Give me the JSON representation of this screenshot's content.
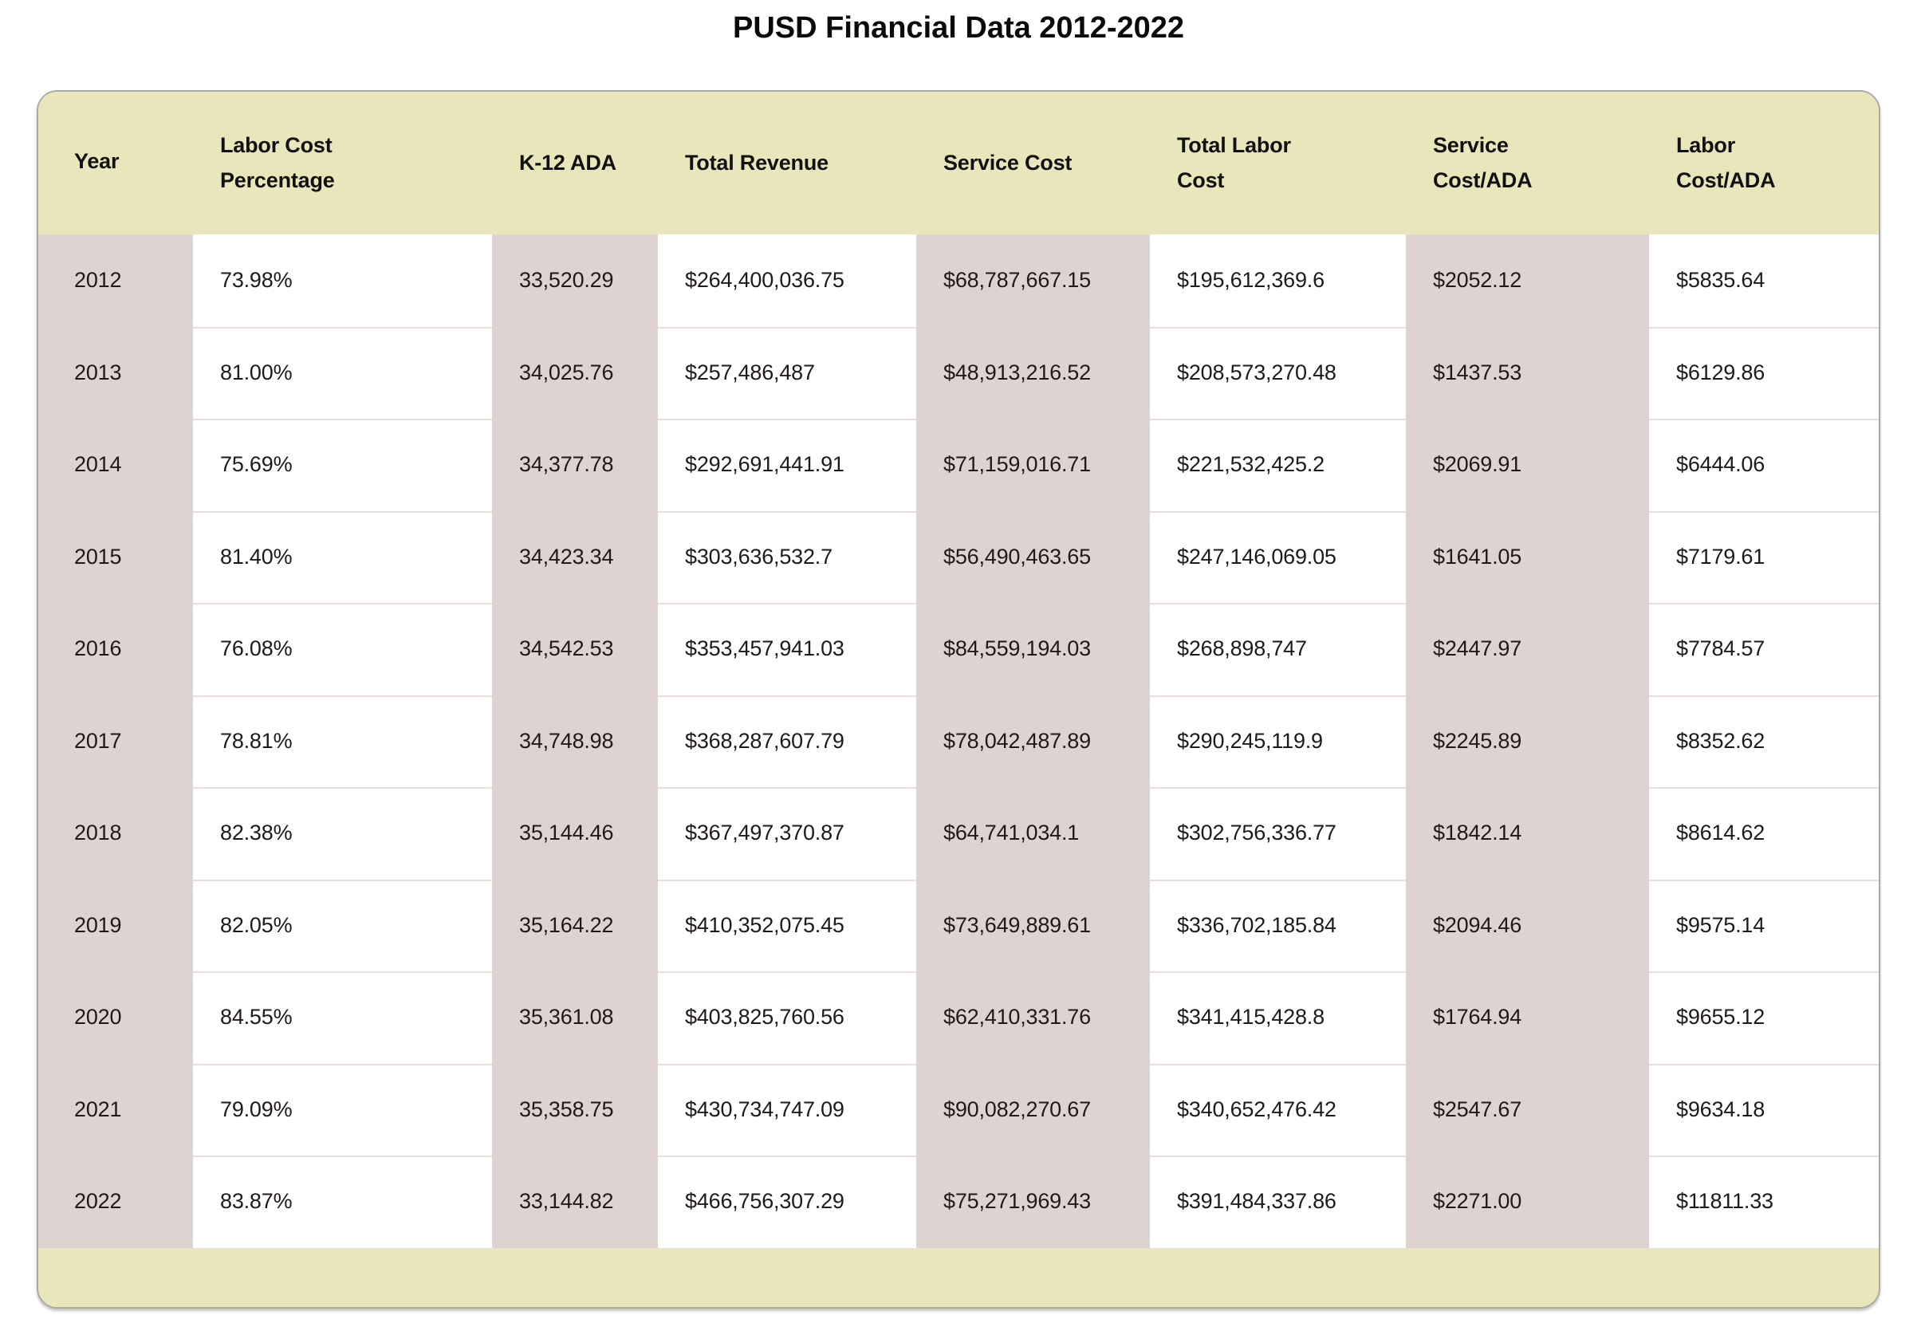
{
  "title": "PUSD Financial Data 2012-2022",
  "style": {
    "header_footer_band_color": "#e9e6bc",
    "stripe_column_color": "#ded3d1",
    "row_divider_color": "#eadedd",
    "card_border_color": "#aba9a2",
    "text_color": "#1f1a17"
  },
  "chart_data": {
    "type": "table",
    "title": "PUSD Financial Data 2012-2022",
    "columns": [
      "Year",
      "Labor Cost Percentage",
      "K-12 ADA",
      "Total Revenue",
      "Service Cost",
      "Total Labor Cost",
      "Service Cost/ADA",
      "Labor Cost/ADA"
    ],
    "column_display": [
      "Year",
      "Labor Cost\nPercentage",
      "K-12 ADA",
      "Total Revenue",
      "Service Cost",
      "Total Labor\nCost",
      "Service\nCost/ADA",
      "Labor\nCost/ADA"
    ],
    "rows": [
      [
        "2012",
        "73.98%",
        "33,520.29",
        "$264,400,036.75",
        "$68,787,667.15",
        "$195,612,369.6",
        "$2052.12",
        "$5835.64"
      ],
      [
        "2013",
        "81.00%",
        "34,025.76",
        "$257,486,487",
        "$48,913,216.52",
        "$208,573,270.48",
        "$1437.53",
        "$6129.86"
      ],
      [
        "2014",
        "75.69%",
        "34,377.78",
        "$292,691,441.91",
        "$71,159,016.71",
        "$221,532,425.2",
        "$2069.91",
        "$6444.06"
      ],
      [
        "2015",
        "81.40%",
        "34,423.34",
        "$303,636,532.7",
        "$56,490,463.65",
        "$247,146,069.05",
        "$1641.05",
        "$7179.61"
      ],
      [
        "2016",
        "76.08%",
        "34,542.53",
        "$353,457,941.03",
        "$84,559,194.03",
        "$268,898,747",
        "$2447.97",
        "$7784.57"
      ],
      [
        "2017",
        "78.81%",
        "34,748.98",
        "$368,287,607.79",
        "$78,042,487.89",
        "$290,245,119.9",
        "$2245.89",
        "$8352.62"
      ],
      [
        "2018",
        "82.38%",
        "35,144.46",
        "$367,497,370.87",
        "$64,741,034.1",
        "$302,756,336.77",
        "$1842.14",
        "$8614.62"
      ],
      [
        "2019",
        "82.05%",
        "35,164.22",
        "$410,352,075.45",
        "$73,649,889.61",
        "$336,702,185.84",
        "$2094.46",
        "$9575.14"
      ],
      [
        "2020",
        "84.55%",
        "35,361.08",
        "$403,825,760.56",
        "$62,410,331.76",
        "$341,415,428.8",
        "$1764.94",
        "$9655.12"
      ],
      [
        "2021",
        "79.09%",
        "35,358.75",
        "$430,734,747.09",
        "$90,082,270.67",
        "$340,652,476.42",
        "$2547.67",
        "$9634.18"
      ],
      [
        "2022",
        "83.87%",
        "33,144.82",
        "$466,756,307.29",
        "$75,271,969.43",
        "$391,484,337.86",
        "$2271.00",
        "$11811.33"
      ]
    ]
  }
}
